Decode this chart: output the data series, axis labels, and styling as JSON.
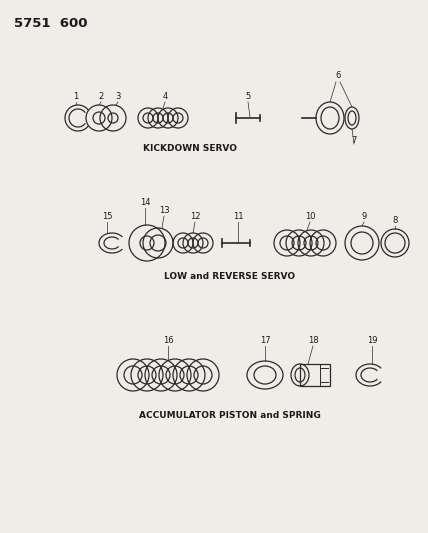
{
  "title": "5751  600",
  "bg_color": "#f0ede8",
  "line_color": "#2a2a2a",
  "text_color": "#1a1a1a",
  "section1_label": "KICKDOWN SERVO",
  "section2_label": "LOW and REVERSE SERVO",
  "section3_label": "ACCUMULATOR PISTON and SPRING",
  "figsize": [
    4.28,
    5.33
  ],
  "dpi": 100
}
